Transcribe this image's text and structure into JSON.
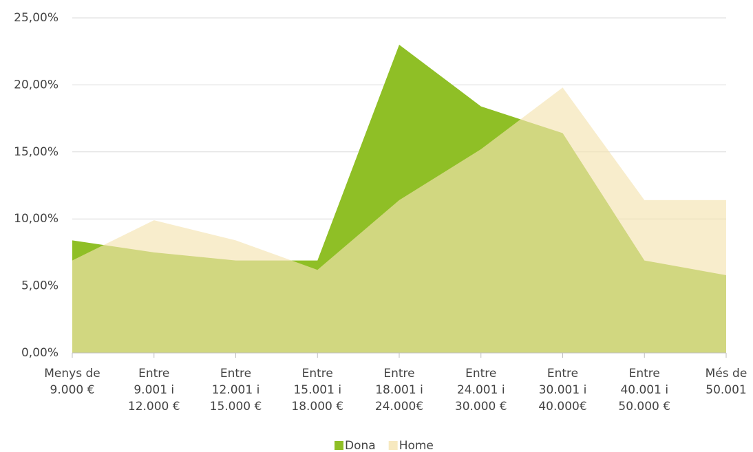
{
  "chart_data": {
    "type": "area",
    "categories": [
      "Menys de\n9.000 €",
      "Entre\n9.001 i\n12.000 €",
      "Entre\n12.001 i\n15.000 €",
      "Entre\n15.001 i\n18.000 €",
      "Entre\n18.001 i\n24.000€",
      "Entre\n24.001 i\n30.000 €",
      "Entre\n30.001 i\n40.000€",
      "Entre\n40.001 i\n50.000 €",
      "Més de\n50.001"
    ],
    "series": [
      {
        "name": "Dona",
        "color": "#8fbf26",
        "values": [
          8.4,
          7.5,
          6.9,
          6.9,
          23.0,
          18.4,
          16.4,
          6.9,
          5.8
        ]
      },
      {
        "name": "Home",
        "color": "#f5e3b0",
        "values": [
          6.9,
          9.9,
          8.4,
          6.2,
          11.4,
          15.2,
          19.8,
          11.4,
          11.4
        ]
      }
    ],
    "ylim": [
      0,
      25
    ],
    "yticks": [
      {
        "value": 0,
        "label": "0,00%"
      },
      {
        "value": 5,
        "label": "5,00%"
      },
      {
        "value": 10,
        "label": "10,00%"
      },
      {
        "value": 15,
        "label": "15,00%"
      },
      {
        "value": 20,
        "label": "20,00%"
      },
      {
        "value": 25,
        "label": "25,00%"
      }
    ],
    "grid": true,
    "legend": "bottom"
  }
}
